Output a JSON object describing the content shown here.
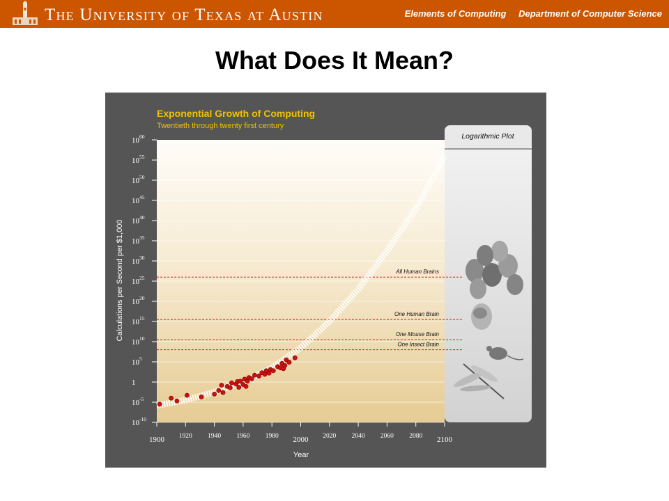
{
  "header": {
    "university": "The University of Texas at Austin",
    "course": "Elements of Computing",
    "department": "Department of Computer Science"
  },
  "slide": {
    "title": "What Does It Mean?"
  },
  "colors": {
    "banner": "#cc5500",
    "panel": "#555555",
    "title_yellow": "#f2c200",
    "points": "#cc1111",
    "threshold": "#d62020"
  },
  "chart_data": {
    "type": "scatter",
    "title": "Exponential Growth of Computing",
    "subtitle": "Twentieth through twenty first century",
    "xlabel": "Year",
    "ylabel": "Calculations per Second per $1,000",
    "scale_note": "Logarithmic Plot",
    "y_scale": "log",
    "xlim": [
      1900,
      2100
    ],
    "ylim_exponent": [
      -10,
      60
    ],
    "x_ticks": [
      "1900",
      "1920",
      "1940",
      "1960",
      "1980",
      "2000",
      "2020",
      "2040",
      "2060",
      "2080",
      "2100"
    ],
    "y_ticks": [
      {
        "exp": 60,
        "base": "10",
        "sup": "60"
      },
      {
        "exp": 55,
        "base": "10",
        "sup": "55"
      },
      {
        "exp": 50,
        "base": "10",
        "sup": "50"
      },
      {
        "exp": 45,
        "base": "10",
        "sup": "45"
      },
      {
        "exp": 40,
        "base": "10",
        "sup": "40"
      },
      {
        "exp": 35,
        "base": "10",
        "sup": "35"
      },
      {
        "exp": 30,
        "base": "10",
        "sup": "30"
      },
      {
        "exp": 25,
        "base": "10",
        "sup": "25"
      },
      {
        "exp": 20,
        "base": "10",
        "sup": "20"
      },
      {
        "exp": 15,
        "base": "10",
        "sup": "15"
      },
      {
        "exp": 10,
        "base": "10",
        "sup": "10"
      },
      {
        "exp": 5,
        "base": "10",
        "sup": "5"
      },
      {
        "exp": 0,
        "base": "1",
        "sup": ""
      },
      {
        "exp": -5,
        "base": "10",
        "sup": "-5"
      },
      {
        "exp": -10,
        "base": "10",
        "sup": "-10"
      }
    ],
    "thresholds": [
      {
        "label": "All Human Brains",
        "exp": 26
      },
      {
        "label": "One Human Brain",
        "exp": 15.5
      },
      {
        "label": "One Mouse Brain",
        "exp": 10.5
      },
      {
        "label": "One Insect Brain",
        "exp": 8
      }
    ],
    "points": [
      {
        "year": 1902,
        "exp": -5.5
      },
      {
        "year": 1910,
        "exp": -4
      },
      {
        "year": 1914,
        "exp": -4.7
      },
      {
        "year": 1921,
        "exp": -3.3
      },
      {
        "year": 1931,
        "exp": -3.7
      },
      {
        "year": 1940,
        "exp": -3
      },
      {
        "year": 1943,
        "exp": -2.1
      },
      {
        "year": 1945,
        "exp": -0.8
      },
      {
        "year": 1946,
        "exp": -2.6
      },
      {
        "year": 1949,
        "exp": -1.1
      },
      {
        "year": 1951,
        "exp": -1.4
      },
      {
        "year": 1952,
        "exp": -0.2
      },
      {
        "year": 1955,
        "exp": -0.5
      },
      {
        "year": 1956,
        "exp": 0.1
      },
      {
        "year": 1957,
        "exp": -1.3
      },
      {
        "year": 1958,
        "exp": 0.2
      },
      {
        "year": 1960,
        "exp": -0.6
      },
      {
        "year": 1961,
        "exp": 0.7
      },
      {
        "year": 1962,
        "exp": -1.1
      },
      {
        "year": 1963,
        "exp": 0.2
      },
      {
        "year": 1964,
        "exp": 1.1
      },
      {
        "year": 1966,
        "exp": 0.8
      },
      {
        "year": 1968,
        "exp": 1.7
      },
      {
        "year": 1971,
        "exp": 1.5
      },
      {
        "year": 1973,
        "exp": 2.3
      },
      {
        "year": 1975,
        "exp": 1.9
      },
      {
        "year": 1976,
        "exp": 2.8
      },
      {
        "year": 1978,
        "exp": 2.2
      },
      {
        "year": 1979,
        "exp": 3.1
      },
      {
        "year": 1981,
        "exp": 2.8
      },
      {
        "year": 1984,
        "exp": 3.8
      },
      {
        "year": 1986,
        "exp": 3.5
      },
      {
        "year": 1987,
        "exp": 4.6
      },
      {
        "year": 1988,
        "exp": 3.3
      },
      {
        "year": 1989,
        "exp": 4.1
      },
      {
        "year": 1990,
        "exp": 5.5
      },
      {
        "year": 1992,
        "exp": 4.9
      },
      {
        "year": 1996,
        "exp": 6
      }
    ],
    "trend": [
      {
        "year": 1900,
        "exp": -5.8
      },
      {
        "year": 1920,
        "exp": -4.5
      },
      {
        "year": 1940,
        "exp": -2.5
      },
      {
        "year": 1960,
        "exp": 0
      },
      {
        "year": 1980,
        "exp": 3.5
      },
      {
        "year": 2000,
        "exp": 8.5
      },
      {
        "year": 2020,
        "exp": 15
      },
      {
        "year": 2040,
        "exp": 23
      },
      {
        "year": 2060,
        "exp": 32.5
      },
      {
        "year": 2080,
        "exp": 43
      },
      {
        "year": 2100,
        "exp": 56
      }
    ]
  }
}
